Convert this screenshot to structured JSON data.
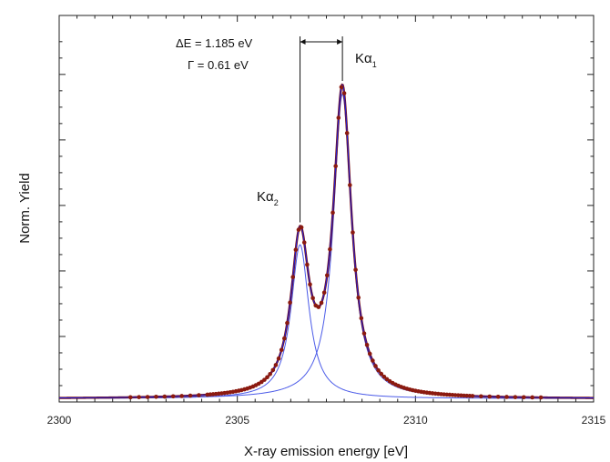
{
  "chart_data": {
    "type": "line",
    "xlabel": "X-ray emission energy [eV]",
    "ylabel": "Norm. Yield",
    "xlim": [
      2300,
      2315
    ],
    "ylim": [
      0,
      1.18
    ],
    "x_ticks": [
      "2300",
      "2305",
      "2310",
      "2315"
    ],
    "y_tick_labels_shown": false,
    "grid": false,
    "peaks": [
      {
        "label": "Kα",
        "subscript": "1",
        "center": 2307.95,
        "amplitude": 0.93
      },
      {
        "label": "Kα",
        "subscript": "2",
        "center": 2306.76,
        "amplitude": 0.47
      }
    ],
    "lorentzian_fwhm": 0.61,
    "background": 0.01,
    "annotations": {
      "delta_e": "ΔE = 1.185 eV",
      "gamma": "Γ = 0.61 eV"
    },
    "series": [
      {
        "role": "measured",
        "style": "points",
        "color": "#8b1a10"
      },
      {
        "role": "fit",
        "style": "line",
        "color": "#1f1fd8"
      },
      {
        "role": "component Kα1",
        "style": "line",
        "color": "#4a5ae8"
      },
      {
        "role": "component Kα2",
        "style": "line",
        "color": "#4a5ae8"
      }
    ]
  }
}
